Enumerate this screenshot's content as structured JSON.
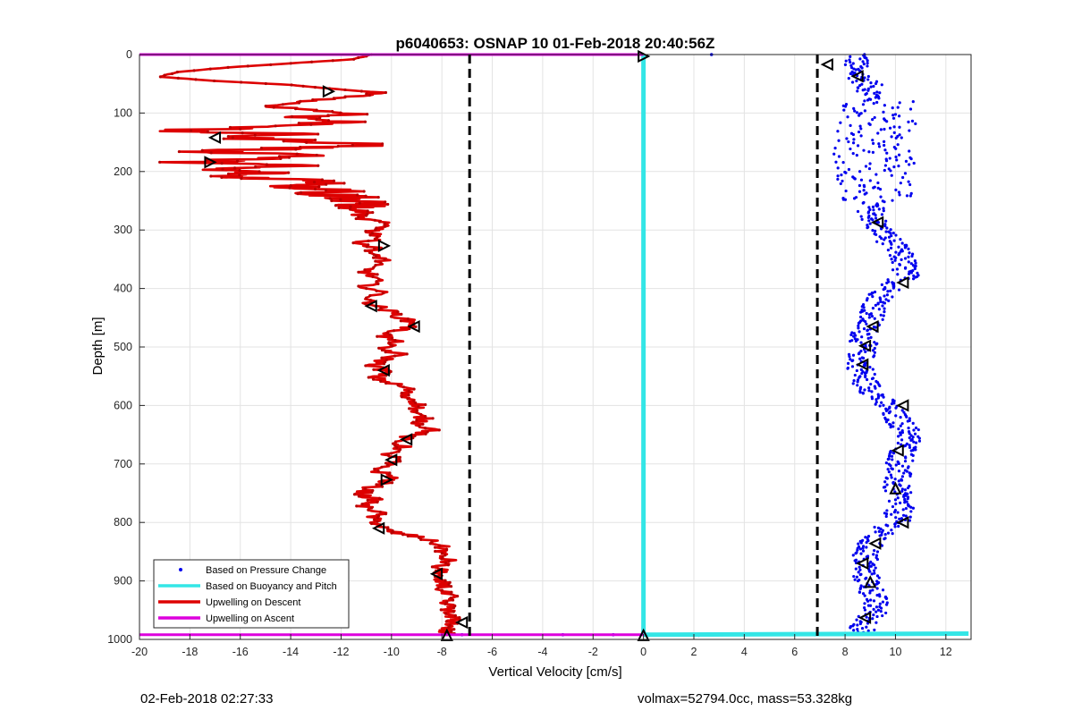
{
  "footer": {
    "left_text": "02-Feb-2018 02:27:33",
    "right_text": "volmax=52794.0cc, mass=53.328kg"
  },
  "chart_data": {
    "type": "line",
    "title": "p6040653: OSNAP 10 01-Feb-2018 20:40:56Z",
    "xlabel": "Vertical Velocity [cm/s]",
    "ylabel": "Depth [m]",
    "xlim": [
      -20,
      13
    ],
    "ylim": [
      0,
      1000
    ],
    "y_reversed": true,
    "grid": true,
    "x_ticks": [
      -20,
      -18,
      -16,
      -14,
      -12,
      -10,
      -8,
      -6,
      -4,
      -2,
      0,
      2,
      4,
      6,
      8,
      10,
      12
    ],
    "y_ticks": [
      0,
      100,
      200,
      300,
      400,
      500,
      600,
      700,
      800,
      900,
      1000
    ],
    "legend_position": "bottom-left",
    "legend": [
      {
        "label": "Based on Pressure Change",
        "style": "dots",
        "color": "#0000ee"
      },
      {
        "label": "Based on Buoyancy and Pitch",
        "style": "line",
        "color": "#33e6e6"
      },
      {
        "label": "Upwelling on Descent",
        "style": "line",
        "color": "#dd0000"
      },
      {
        "label": "Upwelling on Ascent",
        "style": "line",
        "color": "#dd00dd"
      }
    ],
    "vertical_dashed_lines": [
      -6.9,
      6.9
    ],
    "series": [
      {
        "name": "Upwelling on Descent",
        "color": "#dd0000",
        "points": [
          [
            -10.8,
            0
          ],
          [
            -11.5,
            8
          ],
          [
            -14,
            15
          ],
          [
            -16.5,
            22
          ],
          [
            -18.5,
            30
          ],
          [
            -19.2,
            38
          ],
          [
            -17,
            45
          ],
          [
            -14,
            52
          ],
          [
            -12.5,
            58
          ],
          [
            -10.5,
            65
          ],
          [
            -11.5,
            72
          ],
          [
            -13.5,
            80
          ],
          [
            -15,
            88
          ],
          [
            -13,
            95
          ],
          [
            -11.5,
            102
          ],
          [
            -13.5,
            108
          ],
          [
            -12,
            115
          ],
          [
            -13.5,
            122
          ],
          [
            -19.3,
            130
          ],
          [
            -14,
            136
          ],
          [
            -16.5,
            142
          ],
          [
            -13,
            148
          ],
          [
            -10.5,
            155
          ],
          [
            -14,
            160
          ],
          [
            -17.5,
            166
          ],
          [
            -12.5,
            172
          ],
          [
            -15.5,
            178
          ],
          [
            -17.8,
            184
          ],
          [
            -14,
            190
          ],
          [
            -17.5,
            196
          ],
          [
            -15,
            202
          ],
          [
            -16.8,
            208
          ],
          [
            -13.5,
            214
          ],
          [
            -12,
            220
          ],
          [
            -14,
            226
          ],
          [
            -11.5,
            232
          ],
          [
            -13,
            238
          ],
          [
            -11.2,
            244
          ],
          [
            -12,
            250
          ],
          [
            -10.8,
            256
          ],
          [
            -11.8,
            262
          ],
          [
            -11,
            270
          ],
          [
            -11.5,
            278
          ],
          [
            -10.5,
            286
          ],
          [
            -10.1,
            294
          ],
          [
            -10.8,
            302
          ],
          [
            -10.4,
            312
          ],
          [
            -11.2,
            322
          ],
          [
            -10.6,
            332
          ],
          [
            -10.9,
            342
          ],
          [
            -10.2,
            350
          ],
          [
            -10.8,
            360
          ],
          [
            -11.0,
            372
          ],
          [
            -10.6,
            384
          ],
          [
            -11.0,
            396
          ],
          [
            -10.4,
            408
          ],
          [
            -11.0,
            420
          ],
          [
            -10.6,
            430
          ],
          [
            -10.0,
            440
          ],
          [
            -9.5,
            452
          ],
          [
            -9.0,
            462
          ],
          [
            -9.8,
            472
          ],
          [
            -10.3,
            482
          ],
          [
            -9.8,
            492
          ],
          [
            -10.5,
            502
          ],
          [
            -9.7,
            512
          ],
          [
            -10.3,
            522
          ],
          [
            -10.7,
            532
          ],
          [
            -10.2,
            542
          ],
          [
            -10.7,
            552
          ],
          [
            -10.0,
            562
          ],
          [
            -9.3,
            572
          ],
          [
            -9.6,
            582
          ],
          [
            -9.0,
            592
          ],
          [
            -8.9,
            602
          ],
          [
            -9.2,
            612
          ],
          [
            -8.7,
            622
          ],
          [
            -8.9,
            632
          ],
          [
            -8.3,
            642
          ],
          [
            -9.3,
            652
          ],
          [
            -9.8,
            662
          ],
          [
            -9.5,
            672
          ],
          [
            -10.2,
            682
          ],
          [
            -9.8,
            692
          ],
          [
            -10.3,
            702
          ],
          [
            -10.6,
            712
          ],
          [
            -9.9,
            722
          ],
          [
            -10.3,
            732
          ],
          [
            -10.9,
            742
          ],
          [
            -11.2,
            752
          ],
          [
            -10.6,
            762
          ],
          [
            -11.2,
            772
          ],
          [
            -10.4,
            782
          ],
          [
            -10.8,
            792
          ],
          [
            -10.5,
            802
          ],
          [
            -10.3,
            812
          ],
          [
            -9.8,
            818
          ],
          [
            -8.8,
            826
          ],
          [
            -8.2,
            836
          ],
          [
            -7.9,
            846
          ],
          [
            -8.1,
            856
          ],
          [
            -7.7,
            866
          ],
          [
            -8.2,
            876
          ],
          [
            -8.0,
            886
          ],
          [
            -8.4,
            896
          ],
          [
            -7.8,
            906
          ],
          [
            -8.1,
            916
          ],
          [
            -7.7,
            926
          ],
          [
            -8.0,
            936
          ],
          [
            -7.6,
            946
          ],
          [
            -7.9,
            956
          ],
          [
            -7.5,
            966
          ],
          [
            -7.6,
            976
          ],
          [
            -7.9,
            986
          ],
          [
            -7.8,
            992
          ]
        ]
      },
      {
        "name": "Based on Buoyancy and Pitch",
        "color": "#33e6e6",
        "points": [
          [
            0,
            0
          ],
          [
            0,
            990
          ],
          [
            0,
            992
          ],
          [
            12.9,
            990
          ]
        ]
      },
      {
        "name": "Upwelling on Ascent",
        "color": "#dd00dd",
        "points_top": [
          [
            -20,
            0
          ],
          [
            0,
            0
          ]
        ],
        "points_bottom": [
          [
            -20,
            992
          ],
          [
            0,
            992
          ]
        ]
      },
      {
        "name": "Based on Pressure Change",
        "color": "#0000ee",
        "style": "scatter",
        "profile_center": [
          [
            0,
            8.6
          ],
          [
            25,
            8.3
          ],
          [
            50,
            8.9
          ],
          [
            80,
            9.2
          ],
          [
            110,
            9.3
          ],
          [
            140,
            9.2
          ],
          [
            170,
            9.0
          ],
          [
            200,
            9.3
          ],
          [
            230,
            9.2
          ],
          [
            260,
            9.0
          ],
          [
            290,
            9.2
          ],
          [
            320,
            9.8
          ],
          [
            350,
            10.3
          ],
          [
            380,
            10.4
          ],
          [
            410,
            9.5
          ],
          [
            440,
            9.1
          ],
          [
            470,
            8.8
          ],
          [
            500,
            8.7
          ],
          [
            530,
            8.6
          ],
          [
            560,
            8.8
          ],
          [
            590,
            9.4
          ],
          [
            620,
            10.0
          ],
          [
            650,
            10.6
          ],
          [
            680,
            10.3
          ],
          [
            710,
            10.1
          ],
          [
            740,
            10.0
          ],
          [
            770,
            10.2
          ],
          [
            800,
            10.0
          ],
          [
            830,
            9.0
          ],
          [
            860,
            8.8
          ],
          [
            890,
            8.8
          ],
          [
            920,
            9.1
          ],
          [
            950,
            9.2
          ],
          [
            975,
            8.8
          ],
          [
            990,
            8.6
          ]
        ],
        "outliers": [
          [
            2.7,
            0
          ],
          [
            -7.2,
            992
          ],
          [
            -3.2,
            992
          ],
          [
            -1.2,
            992
          ],
          [
            2.2,
            993
          ],
          [
            5.8,
            992
          ],
          [
            6.8,
            992
          ]
        ]
      }
    ],
    "markers": {
      "descent": [
        [
          -12.5,
          63,
          "right"
        ],
        [
          -17.0,
          142,
          "left"
        ],
        [
          -17.2,
          184,
          "right"
        ],
        [
          -10.3,
          327,
          "right"
        ],
        [
          -10.8,
          430,
          "left"
        ],
        [
          -9.1,
          465,
          "left"
        ],
        [
          -10.3,
          540,
          "left"
        ],
        [
          -9.4,
          658,
          "left"
        ],
        [
          -10.0,
          693,
          "left"
        ],
        [
          -10.2,
          727,
          "right"
        ],
        [
          -10.5,
          810,
          "left"
        ],
        [
          -8.2,
          888,
          "left"
        ],
        [
          -7.2,
          971,
          "left"
        ],
        [
          -7.8,
          993,
          "up"
        ],
        [
          0,
          3,
          "right"
        ],
        [
          0,
          993,
          "up"
        ]
      ],
      "ascent": [
        [
          7.3,
          17,
          "left"
        ],
        [
          8.5,
          37,
          "left"
        ],
        [
          9.3,
          287,
          "left"
        ],
        [
          10.3,
          390,
          "left"
        ],
        [
          9.1,
          465,
          "left"
        ],
        [
          8.8,
          498,
          "left"
        ],
        [
          8.7,
          530,
          "left"
        ],
        [
          10.3,
          600,
          "left"
        ],
        [
          10.1,
          677,
          "left"
        ],
        [
          10.0,
          742,
          "up"
        ],
        [
          10.3,
          800,
          "left"
        ],
        [
          9.2,
          836,
          "left"
        ],
        [
          8.7,
          870,
          "left"
        ],
        [
          9.0,
          902,
          "up"
        ],
        [
          8.8,
          963,
          "left"
        ]
      ]
    }
  }
}
